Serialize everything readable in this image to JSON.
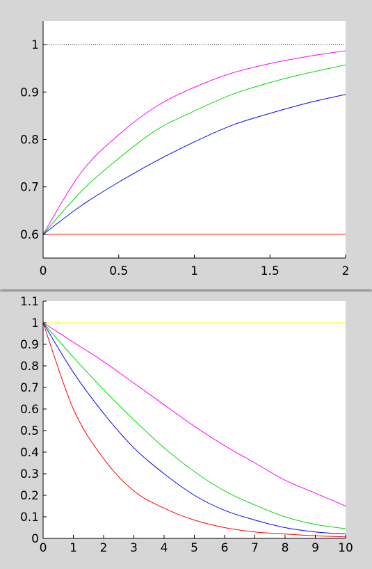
{
  "chart_data": [
    {
      "type": "line",
      "title": "",
      "xlabel": "",
      "ylabel": "",
      "xlim": [
        0,
        2
      ],
      "ylim": [
        0.55,
        1.05
      ],
      "grid": false,
      "xticks": [
        0,
        0.5,
        1,
        1.5,
        2
      ],
      "xtick_labels": [
        "0",
        "0.5",
        "1",
        "1.5",
        "2"
      ],
      "yticks": [
        0.6,
        0.7,
        0.8,
        0.9,
        1
      ],
      "ytick_labels": [
        "0.6",
        "0.7",
        "0.8",
        "0.9",
        "1"
      ],
      "x": [
        0,
        0.25,
        0.5,
        0.75,
        1,
        1.25,
        1.5,
        1.75,
        2
      ],
      "series": [
        {
          "color": "#ff00ff",
          "values": [
            0.6,
            0.73,
            0.81,
            0.87,
            0.91,
            0.94,
            0.96,
            0.975,
            0.987
          ]
        },
        {
          "color": "#00dd00",
          "values": [
            0.6,
            0.69,
            0.76,
            0.82,
            0.86,
            0.895,
            0.92,
            0.94,
            0.957
          ]
        },
        {
          "color": "#0000ff",
          "values": [
            0.6,
            0.66,
            0.71,
            0.755,
            0.795,
            0.83,
            0.855,
            0.877,
            0.895
          ]
        },
        {
          "color": "#ff0000",
          "values": [
            0.6,
            0.6,
            0.6,
            0.6,
            0.6,
            0.6,
            0.6,
            0.6,
            0.6
          ]
        },
        {
          "color": "#000000",
          "line_style": "dotted",
          "values": [
            1,
            1,
            1,
            1,
            1,
            1,
            1,
            1,
            1
          ]
        }
      ]
    },
    {
      "type": "line",
      "title": "",
      "xlabel": "",
      "ylabel": "",
      "xlim": [
        0,
        10
      ],
      "ylim": [
        0,
        1.1
      ],
      "grid": false,
      "xticks": [
        0,
        1,
        2,
        3,
        4,
        5,
        6,
        7,
        8,
        9,
        10
      ],
      "xtick_labels": [
        "0",
        "1",
        "2",
        "3",
        "4",
        "5",
        "6",
        "7",
        "8",
        "9",
        "10"
      ],
      "yticks": [
        0,
        0.1,
        0.2,
        0.3,
        0.4,
        0.5,
        0.6,
        0.7,
        0.8,
        0.9,
        1,
        1.1
      ],
      "ytick_labels": [
        "0",
        "0.1",
        "0.2",
        "0.3",
        "0.4",
        "0.5",
        "0.6",
        "0.7",
        "0.8",
        "0.9",
        "1",
        "1.1"
      ],
      "x": [
        0,
        1,
        2,
        3,
        4,
        5,
        6,
        7,
        8,
        9,
        10
      ],
      "series": [
        {
          "color": "#ffff00",
          "values": [
            1,
            1,
            1,
            1,
            1,
            1,
            1,
            1,
            1,
            1,
            1
          ]
        },
        {
          "color": "#ff00ff",
          "values": [
            1,
            0.91,
            0.82,
            0.72,
            0.62,
            0.52,
            0.43,
            0.35,
            0.27,
            0.21,
            0.15
          ]
        },
        {
          "color": "#00dd00",
          "values": [
            1,
            0.84,
            0.69,
            0.55,
            0.42,
            0.31,
            0.22,
            0.155,
            0.1,
            0.065,
            0.045
          ]
        },
        {
          "color": "#0000ff",
          "values": [
            1,
            0.77,
            0.58,
            0.42,
            0.3,
            0.2,
            0.13,
            0.085,
            0.05,
            0.03,
            0.02
          ]
        },
        {
          "color": "#ff0000",
          "values": [
            1,
            0.6,
            0.37,
            0.22,
            0.14,
            0.085,
            0.05,
            0.03,
            0.02,
            0.012,
            0.007
          ]
        }
      ]
    }
  ]
}
